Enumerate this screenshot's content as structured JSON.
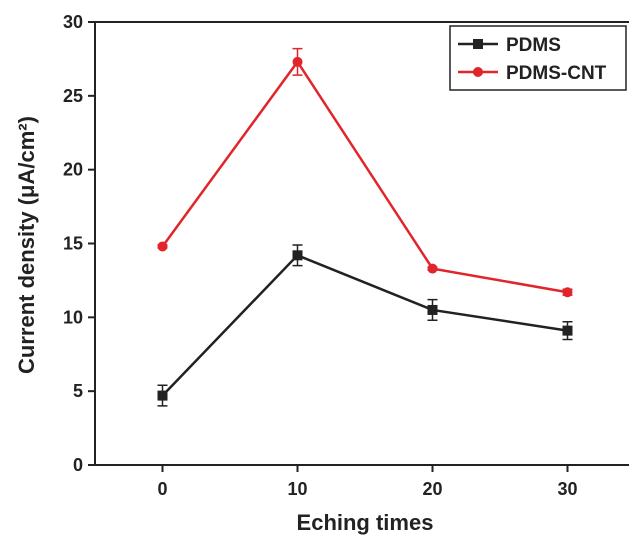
{
  "chart_data": {
    "type": "line",
    "xlabel": "Eching times",
    "ylabel": "Current density (μA/cm²)",
    "x": [
      0,
      10,
      20,
      30
    ],
    "series": [
      {
        "name": "PDMS",
        "color": "#222222",
        "marker": "square",
        "values": [
          4.7,
          14.2,
          10.5,
          9.1
        ],
        "errors": [
          0.7,
          0.7,
          0.7,
          0.6
        ]
      },
      {
        "name": "PDMS-CNT",
        "color": "#e0252b",
        "marker": "circle",
        "values": [
          14.8,
          27.3,
          13.3,
          11.7
        ],
        "errors": [
          0.1,
          0.9,
          0.1,
          0.2
        ]
      }
    ],
    "xlim": [
      -5,
      35
    ],
    "xticks": [
      0,
      10,
      20,
      30
    ],
    "ylim": [
      0,
      30
    ],
    "yticks": [
      0,
      5,
      10,
      15,
      20,
      25,
      30
    ],
    "legend": "upper right"
  }
}
